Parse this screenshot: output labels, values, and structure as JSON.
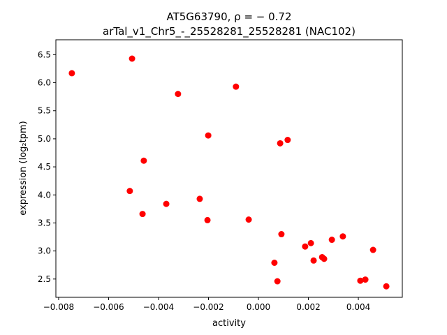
{
  "chart_data": {
    "type": "scatter",
    "title_line1": "AT5G63790, ρ = − 0.72",
    "title_line2": "arTal_v1_Chr5_-_25528281_25528281 (NAC102)",
    "xlabel": "activity",
    "ylabel": "expression (log₂tpm)",
    "xlim": [
      -0.00811,
      0.00576
    ],
    "ylim": [
      2.174,
      6.766
    ],
    "xticks": [
      -0.008,
      -0.006,
      -0.004,
      -0.002,
      0.0,
      0.002,
      0.004
    ],
    "xtick_labels": [
      "−0.008",
      "−0.006",
      "−0.004",
      "−0.002",
      "0.000",
      "0.002",
      "0.004"
    ],
    "yticks": [
      2.5,
      3.0,
      3.5,
      4.0,
      4.5,
      5.0,
      5.5,
      6.0,
      6.5
    ],
    "ytick_labels": [
      "2.5",
      "3.0",
      "3.5",
      "4.0",
      "4.5",
      "5.0",
      "5.5",
      "6.0",
      "6.5"
    ],
    "grid": false,
    "marker_color": "#ff0000",
    "points": [
      [
        -0.00747,
        6.17
      ],
      [
        -0.00506,
        6.43
      ],
      [
        -0.00322,
        5.8
      ],
      [
        -0.0009,
        5.93
      ],
      [
        -0.00201,
        5.06
      ],
      [
        0.00117,
        4.98
      ],
      [
        0.00087,
        4.92
      ],
      [
        -0.00459,
        4.61
      ],
      [
        -0.00515,
        4.07
      ],
      [
        -0.00464,
        3.66
      ],
      [
        -0.00369,
        3.84
      ],
      [
        -0.00235,
        3.93
      ],
      [
        -0.00204,
        3.55
      ],
      [
        -0.00039,
        3.56
      ],
      [
        0.00092,
        3.3
      ],
      [
        0.00187,
        3.08
      ],
      [
        0.0021,
        3.14
      ],
      [
        0.00294,
        3.2
      ],
      [
        0.00338,
        3.26
      ],
      [
        0.00459,
        3.02
      ],
      [
        0.00064,
        2.79
      ],
      [
        0.00221,
        2.83
      ],
      [
        0.00255,
        2.89
      ],
      [
        0.00263,
        2.86
      ],
      [
        0.00076,
        2.46
      ],
      [
        0.00408,
        2.47
      ],
      [
        0.00428,
        2.49
      ],
      [
        0.00512,
        2.37
      ]
    ]
  }
}
